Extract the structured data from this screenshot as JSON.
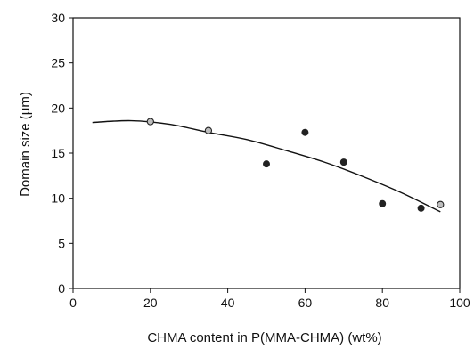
{
  "chart_data": {
    "type": "scatter",
    "xlabel": "CHMA content in P(MMA-CHMA) (wt%)",
    "ylabel": "Domain size (μm)",
    "xlim": [
      0,
      100
    ],
    "ylim": [
      0,
      30
    ],
    "xticks": [
      0,
      20,
      40,
      60,
      80,
      100
    ],
    "yticks": [
      0,
      5,
      10,
      15,
      20,
      25,
      30
    ],
    "grid": false,
    "series": [
      {
        "marker": "open-circle",
        "color": "#222222",
        "points": [
          {
            "x": 20,
            "y": 18.5
          },
          {
            "x": 35,
            "y": 17.5
          },
          {
            "x": 95,
            "y": 9.3
          }
        ]
      },
      {
        "marker": "filled-circle",
        "color": "#222222",
        "points": [
          {
            "x": 50,
            "y": 13.8
          },
          {
            "x": 60,
            "y": 17.3
          },
          {
            "x": 70,
            "y": 14.0
          },
          {
            "x": 80,
            "y": 9.4
          },
          {
            "x": 90,
            "y": 8.9
          }
        ]
      }
    ],
    "fit_curve": {
      "color": "#111111",
      "points": [
        {
          "x": 5,
          "y": 18.4
        },
        {
          "x": 15,
          "y": 18.6
        },
        {
          "x": 25,
          "y": 18.2
        },
        {
          "x": 35,
          "y": 17.3
        },
        {
          "x": 45,
          "y": 16.5
        },
        {
          "x": 55,
          "y": 15.3
        },
        {
          "x": 65,
          "y": 14.0
        },
        {
          "x": 75,
          "y": 12.4
        },
        {
          "x": 85,
          "y": 10.6
        },
        {
          "x": 95,
          "y": 8.5
        }
      ]
    }
  }
}
